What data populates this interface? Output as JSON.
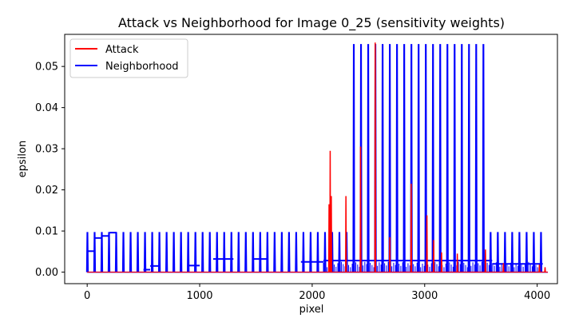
{
  "chart_data": {
    "type": "line",
    "title": "Attack vs Neighborhood for Image 0_25 (sensitivity weights)",
    "xlabel": "pixel",
    "ylabel": "epsilon",
    "xlim": [
      -200,
      4180
    ],
    "ylim": [
      -0.0028,
      0.0578
    ],
    "xticks": [
      0,
      1000,
      2000,
      3000,
      4000
    ],
    "xtick_labels": [
      "0",
      "1000",
      "2000",
      "3000",
      "4000"
    ],
    "yticks": [
      0.0,
      0.01,
      0.02,
      0.03,
      0.04,
      0.05
    ],
    "ytick_labels": [
      "0.00",
      "0.01",
      "0.02",
      "0.03",
      "0.04",
      "0.05"
    ],
    "grid": false,
    "legend_position": "upper-left",
    "colors": {
      "attack": "#ff0000",
      "neighborhood": "#0000ff"
    },
    "series": [
      {
        "name": "Attack",
        "color": "#ff0000",
        "spikes": [
          {
            "x": 2150,
            "y": 0.0165
          },
          {
            "x": 2160,
            "y": 0.0295
          },
          {
            "x": 2170,
            "y": 0.0185
          },
          {
            "x": 2300,
            "y": 0.0185
          },
          {
            "x": 2430,
            "y": 0.0305
          },
          {
            "x": 2560,
            "y": 0.0558
          },
          {
            "x": 2690,
            "y": 0.0085
          },
          {
            "x": 2880,
            "y": 0.0215
          },
          {
            "x": 3020,
            "y": 0.0138
          },
          {
            "x": 3080,
            "y": 0.0078
          },
          {
            "x": 3150,
            "y": 0.0048
          },
          {
            "x": 3290,
            "y": 0.0045
          },
          {
            "x": 3540,
            "y": 0.0055
          },
          {
            "x": 3700,
            "y": 0.0022
          },
          {
            "x": 4020,
            "y": 0.0018
          },
          {
            "x": 4070,
            "y": 0.0012
          }
        ],
        "baseline": 0.0
      },
      {
        "name": "Neighborhood",
        "color": "#0000ff",
        "tall_band": {
          "start": 2360,
          "end": 3570,
          "period": 64,
          "peak": 0.0553,
          "base": 0.0016
        },
        "short_spikes": {
          "start": 0,
          "end": 4050,
          "period": 64,
          "peak": 0.0096
        },
        "steps": [
          {
            "x0": 0,
            "x1": 70,
            "y": 0.0051
          },
          {
            "x0": 70,
            "x1": 130,
            "y": 0.0083
          },
          {
            "x0": 130,
            "x1": 200,
            "y": 0.0088
          },
          {
            "x0": 200,
            "x1": 260,
            "y": 0.0096
          },
          {
            "x0": 500,
            "x1": 560,
            "y": 0.0006
          },
          {
            "x0": 560,
            "x1": 640,
            "y": 0.0015
          },
          {
            "x0": 900,
            "x1": 1000,
            "y": 0.0016
          },
          {
            "x0": 1120,
            "x1": 1300,
            "y": 0.0032
          },
          {
            "x0": 1470,
            "x1": 1600,
            "y": 0.0032
          },
          {
            "x0": 1900,
            "x1": 2100,
            "y": 0.0025
          },
          {
            "x0": 2100,
            "x1": 3600,
            "y": 0.0028
          },
          {
            "x0": 3600,
            "x1": 4050,
            "y": 0.002
          }
        ]
      }
    ]
  }
}
